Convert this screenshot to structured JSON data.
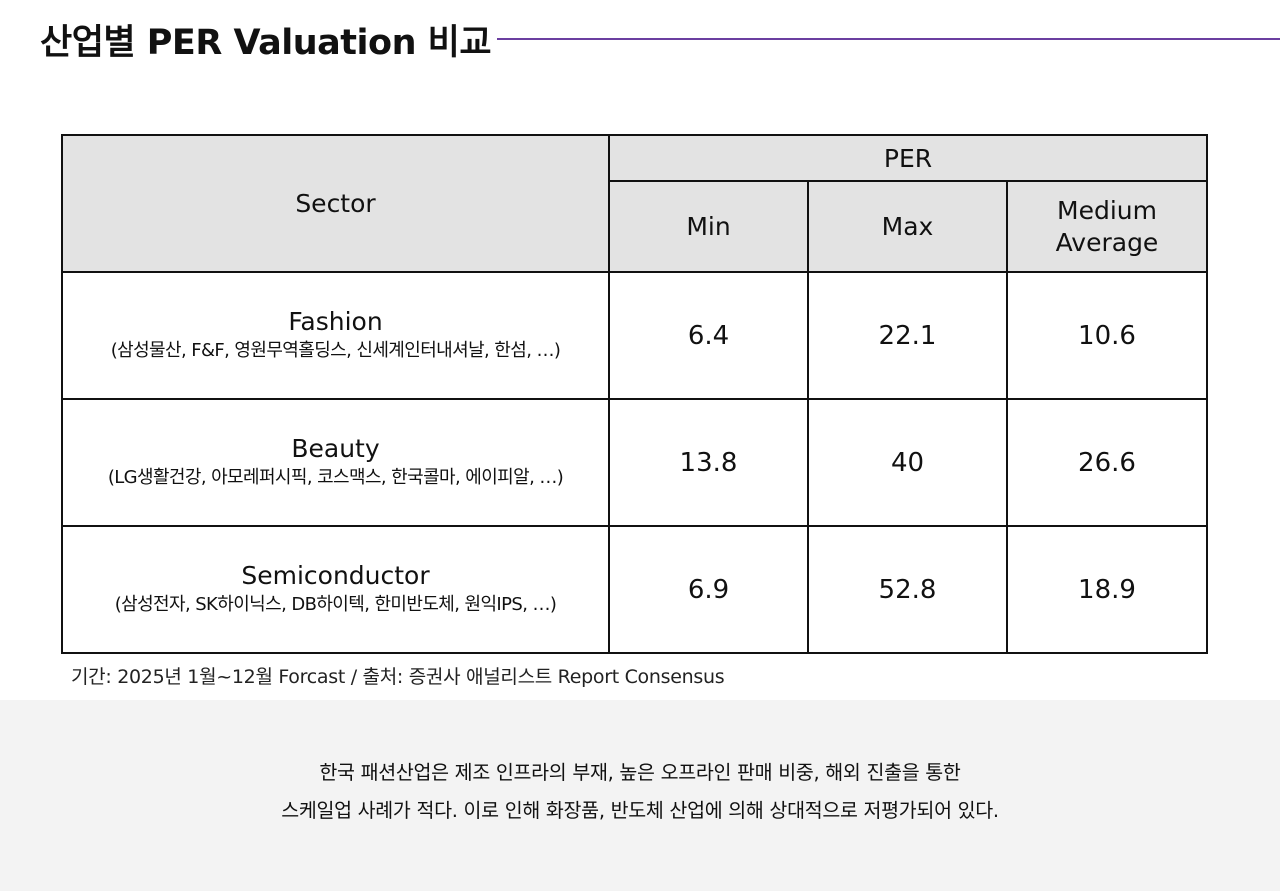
{
  "title": "산업별 PER Valuation 비교",
  "table": {
    "sector_header": "Sector",
    "per_header": "PER",
    "sub_headers": [
      "Min",
      "Max",
      "Medium\nAverage"
    ],
    "rows": [
      {
        "name": "Fashion",
        "companies": "(삼성물산, F&F, 영원무역홀딩스, 신세계인터내셔날, 한섬, …)",
        "min": "6.4",
        "max": "22.1",
        "avg": "10.6"
      },
      {
        "name": "Beauty",
        "companies": "(LG생활건강, 아모레퍼시픽, 코스맥스, 한국콜마, 에이피알, …)",
        "min": "13.8",
        "max": "40",
        "avg": "26.6"
      },
      {
        "name": "Semiconductor",
        "companies": "(삼성전자, SK하이닉스, DB하이텍, 한미반도체, 원익IPS, …)",
        "min": "6.9",
        "max": "52.8",
        "avg": "18.9"
      }
    ]
  },
  "source": "기간: 2025년 1월~12월 Forcast / 출처: 증권사 애널리스트 Report Consensus",
  "note": {
    "line1": "한국 패션산업은 제조 인프라의 부재, 높은 오프라인 판매 비중, 해외 진출을 통한",
    "line2": "스케일업 사례가 적다. 이로 인해 화장품, 반도체 산업에 의해 상대적으로 저평가되어 있다."
  },
  "colors": {
    "accent_line": "#6b3fa0",
    "header_bg": "#e3e3e3",
    "note_bg": "#f3f3f3"
  }
}
